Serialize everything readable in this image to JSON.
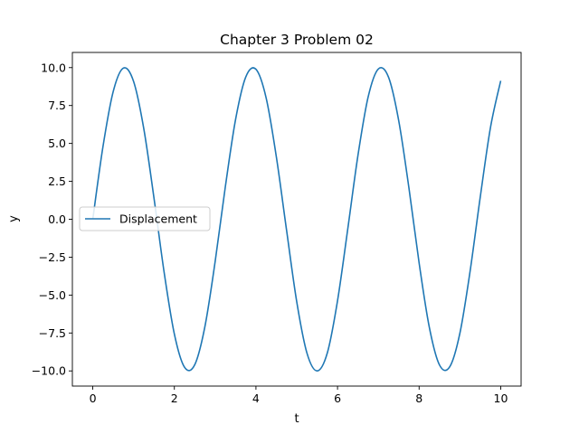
{
  "chart_data": {
    "type": "line",
    "title": "Chapter 3 Problem 02",
    "xlabel": "t",
    "ylabel": "y",
    "xlim": [
      -0.5,
      10.5
    ],
    "ylim": [
      -11,
      11
    ],
    "xticks": [
      0,
      2,
      4,
      6,
      8,
      10
    ],
    "xtick_labels": [
      "0",
      "2",
      "4",
      "6",
      "8",
      "10"
    ],
    "yticks": [
      -10,
      -7.5,
      -5,
      -2.5,
      0,
      2.5,
      5,
      7.5,
      10
    ],
    "ytick_labels": [
      "−10.0",
      "−7.5",
      "−5.0",
      "−2.5",
      "0.0",
      "2.5",
      "5.0",
      "7.5",
      "10.0"
    ],
    "grid": false,
    "legend": {
      "position": "center-left"
    },
    "series": [
      {
        "name": "Displacement",
        "color": "#1f77b4",
        "x": [
          0,
          0.25,
          0.5,
          0.75,
          1,
          1.25,
          1.5,
          1.75,
          2,
          2.25,
          2.5,
          2.75,
          3,
          3.25,
          3.5,
          3.75,
          4,
          4.25,
          4.5,
          4.75,
          5,
          5.25,
          5.5,
          5.75,
          6,
          6.25,
          6.5,
          6.75,
          7,
          7.25,
          7.5,
          7.75,
          8,
          8.25,
          8.5,
          8.75,
          9,
          9.25,
          9.5,
          9.75,
          10
        ],
        "y": [
          0,
          4.79,
          8.41,
          9.97,
          9.09,
          5.98,
          1.41,
          -3.51,
          -7.57,
          -9.76,
          -9.59,
          -7.06,
          -2.79,
          2.15,
          6.57,
          9.38,
          9.89,
          8.0,
          4.12,
          -0.71,
          -5.44,
          -8.82,
          -10.0,
          -8.81,
          -5.37,
          -0.66,
          4.2,
          8.06,
          9.91,
          9.37,
          6.5,
          2.07,
          -2.88,
          -7.12,
          -9.61,
          -9.73,
          -7.51,
          -3.42,
          1.49,
          6.06,
          9.13
        ]
      }
    ]
  }
}
